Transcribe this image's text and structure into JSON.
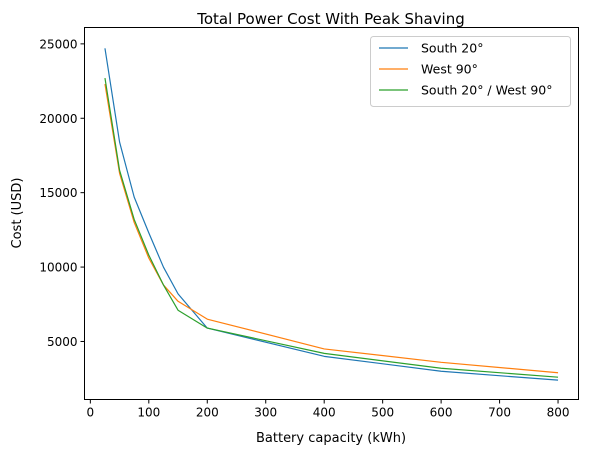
{
  "chart_data": {
    "type": "line",
    "title": "Total Power Cost With Peak Shaving",
    "xlabel": "Battery capacity (kWh)",
    "ylabel": "Cost (USD)",
    "xlim": [
      -10,
      835
    ],
    "ylim": [
      1100,
      26100
    ],
    "xticks": [
      0,
      100,
      200,
      300,
      400,
      500,
      600,
      700,
      800
    ],
    "yticks": [
      5000,
      10000,
      15000,
      20000,
      25000
    ],
    "grid": false,
    "legend_position": "top-right",
    "series": [
      {
        "name": "South 20°",
        "color": "#1f77b4",
        "x": [
          25,
          50,
          75,
          100,
          125,
          150,
          200,
          400,
          600,
          800
        ],
        "y": [
          24700,
          18400,
          14700,
          12300,
          10000,
          8200,
          5900,
          4000,
          3000,
          2400
        ]
      },
      {
        "name": "West 90°",
        "color": "#ff7f0e",
        "x": [
          25,
          50,
          75,
          100,
          125,
          150,
          200,
          400,
          600,
          800
        ],
        "y": [
          22300,
          16300,
          13000,
          10600,
          8800,
          7700,
          6500,
          4500,
          3600,
          2900
        ]
      },
      {
        "name": "South 20° / West 90°",
        "color": "#2ca02c",
        "x": [
          25,
          50,
          75,
          100,
          125,
          150,
          200,
          400,
          600,
          800
        ],
        "y": [
          22700,
          16500,
          13200,
          10800,
          8800,
          7100,
          5900,
          4200,
          3200,
          2600
        ]
      }
    ]
  }
}
